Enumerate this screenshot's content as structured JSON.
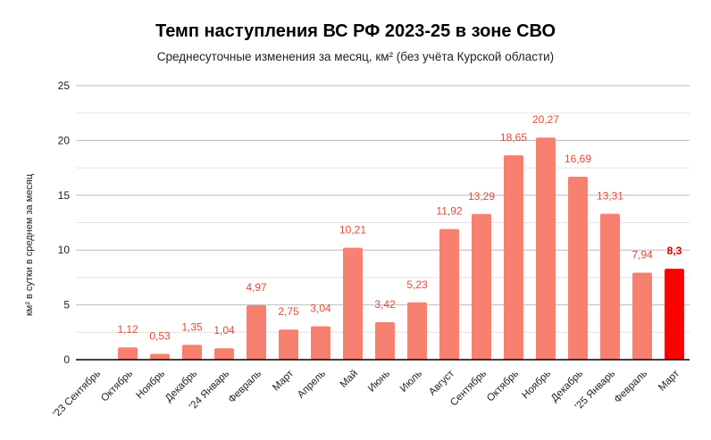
{
  "chart_data": {
    "type": "bar",
    "title": "Темп наступления ВС РФ 2023-25 в зоне СВО",
    "subtitle": "Среднесуточные изменения за месяц, км² (без учёта Курской области)",
    "xlabel": "",
    "ylabel": "км² в сутки в среднем за месяц",
    "ylim": [
      0,
      25
    ],
    "yticks": [
      0,
      5,
      10,
      15,
      20,
      25
    ],
    "grid": true,
    "categories": [
      "'23 Сентябрь",
      "Октябрь",
      "Ноябрь",
      "Декабрь",
      "'24 Январь",
      "Февраль",
      "Март",
      "Апрель",
      "Май",
      "Июнь",
      "Июль",
      "Август",
      "Сентябрь",
      "Октябрь",
      "Ноябрь",
      "Декабрь",
      "'25 Январь",
      "Февраль",
      "Март"
    ],
    "values": [
      null,
      1.12,
      0.53,
      1.35,
      1.04,
      4.97,
      2.75,
      3.04,
      10.21,
      3.42,
      5.23,
      11.92,
      13.29,
      18.65,
      20.27,
      16.69,
      13.31,
      7.94,
      8.3
    ],
    "labels": [
      "",
      "1,12",
      "0,53",
      "1,35",
      "1,04",
      "4,97",
      "2,75",
      "3,04",
      "10,21",
      "3,42",
      "5,23",
      "11,92",
      "13,29",
      "18,65",
      "20,27",
      "16,69",
      "13,31",
      "7,94",
      "8,3"
    ],
    "colors": {
      "bar": "#f88070",
      "highlight": "#ff0000",
      "label": "#e04a3a",
      "grid": "#cccccc"
    },
    "highlight_index": 18
  }
}
